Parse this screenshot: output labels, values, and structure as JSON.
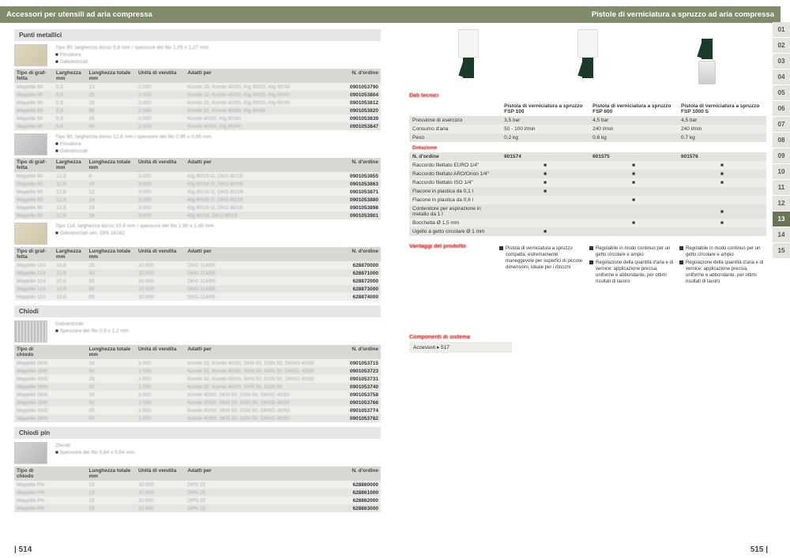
{
  "left": {
    "title": "Accessori per utensili ad aria compressa",
    "page_no": "| 514",
    "sections": [
      {
        "title": "Punti metallici",
        "blocks": [
          {
            "meta_main": "Tipo 90, larghezza dorso 5,8 mm / spessore del filo 1,05 x 1,27 mm",
            "meta_sub": [
              "Fissatura",
              "Galvanizzati"
            ],
            "thumb": "wood",
            "cols": [
              "Tipo di graf-\nfetta",
              "Larghezza\nmm",
              "Lunghezza totale\nmm",
              "Unità di vendita",
              "Adatti per",
              "N. d'ordine"
            ],
            "widths": [
              48,
              40,
              60,
              60,
              190,
              48
            ],
            "rows": [
              [
                "Mappille 90",
                "5,8",
                "13",
                "2.000",
                "Kombi 30, Kombi 40/50, Klg 90/25, Klg 90/40",
                "0901053790"
              ],
              [
                "Mappille 90",
                "5,8",
                "25",
                "2.000",
                "Kombi 32, Kombi 40/50, Klg 90/25, Klg 90/40",
                "0901053804"
              ],
              [
                "Mappille 90",
                "5,8",
                "25",
                "2.000",
                "Kombi 32, Kombi 40/50, Klg 90/25, Klg 90/40",
                "0901053812"
              ],
              [
                "Mappille 90",
                "5,8",
                "30",
                "2.000",
                "Kombi 32, Kombi 40/50, Klg 90/40",
                "0901053820"
              ],
              [
                "Mappille 90",
                "5,8",
                "35",
                "2.000",
                "Kombi 40/50, Klg 90/40",
                "0901053839"
              ],
              [
                "Mappille 90",
                "5,8",
                "40",
                "2.000",
                "Kombi 40/50, Klg 90/40",
                "0901053847"
              ]
            ]
          },
          {
            "meta_main": "Tipo 90, larghezza dorso 12,8 mm / spessore del filo 0,95 x 0,65 mm",
            "meta_sub": [
              "Fissatura",
              "Galvanizzati"
            ],
            "thumb": "gray",
            "cols": [
              "Tipo di graf-\nfetta",
              "Larghezza\nmm",
              "Lunghezza totale\nmm",
              "Unità di vendita",
              "Adatti per",
              "N. d'ordine"
            ],
            "widths": [
              48,
              40,
              60,
              60,
              190,
              48
            ],
            "rows": [
              [
                "Mappille 90",
                "12,8",
                "6",
                "3.000",
                "Klg 90/16 G, DKG 80/16",
                "0901053855"
              ],
              [
                "Mappille 90",
                "12,8",
                "10",
                "3.000",
                "Klg 90/16 G, DKG 80/16",
                "0901053863"
              ],
              [
                "Mappille 90",
                "12,8",
                "12",
                "3.000",
                "Klg 90/16 G, DKG 80/16",
                "0901053871"
              ],
              [
                "Mappille 90",
                "12,8",
                "14",
                "3.000",
                "Klg 90/16 G, DKG 80/16",
                "0901053880"
              ],
              [
                "Mappille 90",
                "12,8",
                "16",
                "3.000",
                "Klg 90/16 G, DKG 80/16",
                "0901053898"
              ],
              [
                "Mappille 90",
                "12,8",
                "16",
                "3.000",
                "Klg 90/16, DKG 80/16",
                "0901053901"
              ]
            ]
          },
          {
            "meta_main": "Tipo 114, larghezza dorso 10,8 mm / spessore del filo 1,60 x 1,40 mm",
            "meta_sub": [
              "Galvanizzati sec. DIN 18182"
            ],
            "thumb": "wood",
            "cols": [
              "Tipo di graf-\nfetta",
              "Larghezza\nmm",
              "Lunghezza totale\nmm",
              "Unità di vendita",
              "Adatti per",
              "N. d'ordine"
            ],
            "widths": [
              48,
              40,
              60,
              60,
              190,
              48
            ],
            "rows": [
              [
                "Mappille 114",
                "10,8",
                "25",
                "10.000",
                "DKG 114/65",
                "628870000"
              ],
              [
                "Mappille 114",
                "10,8",
                "40",
                "10.000",
                "DKG 114/65",
                "628871000"
              ],
              [
                "Mappille 114",
                "10,8",
                "50",
                "10.000",
                "DKG 114/65",
                "628872000"
              ],
              [
                "Mappille 114",
                "10,8",
                "50",
                "10.000",
                "DKG 114/65",
                "628873000"
              ],
              [
                "Mappille 114",
                "10,8",
                "65",
                "10.000",
                "DKG 114/65",
                "628874000"
              ]
            ]
          }
        ]
      },
      {
        "title": "Chiodi",
        "blocks": [
          {
            "meta_main": "Galvanizzati",
            "meta_sub": [
              "Spessore del filo 0,9 x 1,2 mm"
            ],
            "thumb": "grid",
            "cols": [
              "Tipo di chiodo",
              "",
              "Lunghezza totale\nmm",
              "Unità di vendita",
              "Adatti per",
              "N. d'ordine"
            ],
            "widths": [
              48,
              40,
              60,
              60,
              190,
              48
            ],
            "rows": [
              [
                "Mappille SKN",
                "",
                "16",
                "1.000",
                "Kombi 32, Kombi 40/50, SKN 50, DSN 50, DKNG 40/50",
                "0901053715"
              ],
              [
                "Mappille SKN",
                "",
                "40",
                "1.000",
                "Kombi 32, Kombi 40/50, SKN 50, DSN 50, DKNG 40/50",
                "0901053723"
              ],
              [
                "Mappille SKN",
                "",
                "25",
                "1.000",
                "Kombi 32, Kombi 40/50, SKN 50, DSN 50, DKNG 40/50",
                "0901053731"
              ],
              [
                "Mappille SKN",
                "",
                "30",
                "1.000",
                "Kombi 32, Kombi 40/50, SKN 50, DSN 50",
                "0901053740"
              ],
              [
                "Mappille SKN",
                "",
                "35",
                "1.000",
                "Kombi 40/50, SKN 50, DSN 50, DKNG 40/50",
                "0901053758"
              ],
              [
                "Mappille SKN",
                "",
                "40",
                "1.000",
                "Kombi 40/50, SKN 50, DSN 50, DKNG 40/50",
                "0901053766"
              ],
              [
                "Mappille SKN",
                "",
                "45",
                "1.000",
                "Kombi 40/50, SKN 50, DSN 50, DKNG 40/50",
                "0901053774"
              ],
              [
                "Mappille SKN",
                "",
                "50",
                "1.000",
                "Kombi 40/50, SKN 50, DSN 50, DKNG 40/50",
                "0901053782"
              ]
            ]
          }
        ]
      },
      {
        "title": "Chiodi pin",
        "blocks": [
          {
            "meta_main": "Zincati",
            "meta_sub": [
              "Spessore del filo 0,64 x 0,64 mm"
            ],
            "thumb": "gray",
            "cols": [
              "Tipo di chiodo",
              "",
              "Lunghezza totale\nmm",
              "Unità di vendita",
              "Adatti per",
              "N. d'ordine"
            ],
            "widths": [
              48,
              40,
              60,
              60,
              190,
              48
            ],
            "rows": [
              [
                "Mappille PN",
                "",
                "15",
                "10.000",
                "DPN 25",
                "628860000"
              ],
              [
                "Mappille PN",
                "",
                "19",
                "10.000",
                "DPN 25",
                "628861000"
              ],
              [
                "Mappille PN",
                "",
                "25",
                "10.000",
                "DPN 25",
                "628862000"
              ],
              [
                "Mappille PN",
                "",
                "25",
                "10.000",
                "DPN 25",
                "628863000"
              ]
            ]
          }
        ]
      }
    ]
  },
  "right": {
    "title": "Pistole di verniciatura a spruzzo ad aria compressa",
    "page_no": "515 |",
    "dati_tecnici_label": "Dati tecnici",
    "dotazione_label": "Dotazione",
    "n_ordine_label": "N. d'ordine",
    "products": [
      "Pistola di verniciatura a spruzzo\nFSP 100",
      "Pistola di verniciatura a spruzzo\nFSP 600",
      "Pistola di verniciatura a spruzzo\nFSP 1000 S"
    ],
    "orders": [
      "601574",
      "601575",
      "601576"
    ],
    "spec_rows": [
      [
        "Pressione di esercizio",
        "3,5 bar",
        "4,5 bar",
        "4,5 bar"
      ],
      [
        "Consumo d'aria",
        "50 - 100 l/min",
        "240 l/min",
        "240 l/min"
      ],
      [
        "Peso",
        "0,2 kg",
        "0,6 kg",
        "0,7 kg"
      ]
    ],
    "feature_rows": [
      [
        "Raccordo filettato EURO 1/4\"",
        "■",
        "■",
        "■"
      ],
      [
        "Raccordo filettato ARO/Orion 1/4\"",
        "■",
        "■",
        "■"
      ],
      [
        "Raccordo filettato ISO 1/4\"",
        "■",
        "■",
        "■"
      ],
      [
        "Flacone in plastica da 0,1 l",
        "■",
        "",
        ""
      ],
      [
        "Flacone in plastica da 0,6 l",
        "",
        "■",
        ""
      ],
      [
        "Contenitore per aspirazione in metallo da 1 l",
        "",
        "",
        "■"
      ],
      [
        "Bocchetta Ø 1,5 mm",
        "",
        "■",
        "■"
      ],
      [
        "Ugello a getto circolare Ø 1 mm",
        "■",
        "",
        ""
      ]
    ],
    "vantaggi_label": "Vantaggi del prodotto",
    "advantages": [
      [
        "Pistola di verniciatura a spruzzo compatta, estremamente maneggevole per superfici di piccole dimensioni, ideale per i ritocchi"
      ],
      [
        "Regolabile in modo continuo per un getto circolare e ampio",
        "Regolazione della quantità d'aria e di vernice: applicazione precisa, uniforme e abbondante, per ottimi risultati di lavoro"
      ],
      [
        "Regolabile in modo continuo per un getto circolare e ampio",
        "Regolazione della quantità d'aria e di vernice: applicazione precisa, uniforme e abbondante, per ottimi risultati di lavoro"
      ]
    ],
    "componenti_label": "Componenti di sistema",
    "componenti_text": "Accessori ▸ 517",
    "tabs": [
      "01",
      "02",
      "03",
      "04",
      "05",
      "06",
      "07",
      "08",
      "09",
      "10",
      "11",
      "12",
      "13",
      "14",
      "15"
    ],
    "active_tab": "13"
  }
}
